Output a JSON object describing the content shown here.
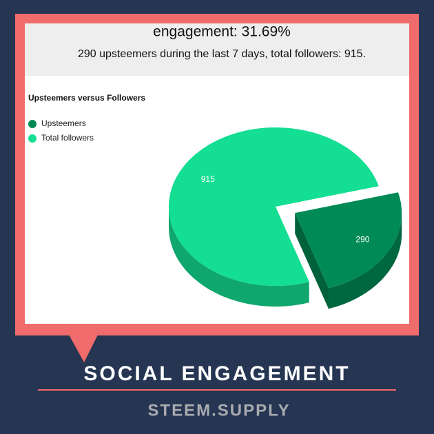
{
  "header": {
    "title": "engagement: 31.69%",
    "subtitle": "290 upsteemers during the last 7 days, total followers: 915."
  },
  "chart_data": {
    "type": "pie",
    "title": "Upsteemers versus Followers",
    "categories": [
      "Upsteemers",
      "Total followers"
    ],
    "values": [
      290,
      915
    ],
    "colors": [
      "#008a55",
      "#14de91"
    ],
    "exploded": [
      true,
      false
    ]
  },
  "footer": {
    "title": "SOCIAL ENGAGEMENT",
    "brand": "STEEM.SUPPLY"
  }
}
